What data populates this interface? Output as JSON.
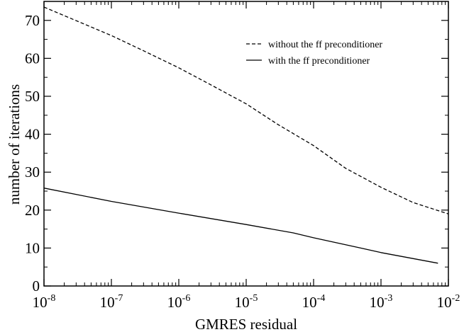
{
  "chart_data": {
    "type": "line",
    "xlabel": "GMRES residual",
    "ylabel": "number of iterations",
    "x_scale": "log",
    "xlim": [
      1e-08,
      0.01
    ],
    "ylim": [
      0,
      75
    ],
    "grid": false,
    "legend_position": "top-right",
    "x_ticks": [
      {
        "base": "10",
        "exp": "-8",
        "value": 1e-08
      },
      {
        "base": "10",
        "exp": "-7",
        "value": 1e-07
      },
      {
        "base": "10",
        "exp": "-6",
        "value": 1e-06
      },
      {
        "base": "10",
        "exp": "-5",
        "value": 1e-05
      },
      {
        "base": "10",
        "exp": "-4",
        "value": 0.0001
      },
      {
        "base": "10",
        "exp": "-3",
        "value": 0.001
      },
      {
        "base": "10",
        "exp": "-2",
        "value": 0.01
      }
    ],
    "y_ticks": [
      "0",
      "10",
      "20",
      "30",
      "40",
      "50",
      "60",
      "70"
    ],
    "series": [
      {
        "name": "without the ff preconditioner",
        "style": "dashed",
        "color": "#000000",
        "x": [
          1e-08,
          1e-07,
          3e-07,
          1e-06,
          3e-06,
          1e-05,
          3e-05,
          0.0001,
          0.0003,
          0.001,
          0.003,
          0.01
        ],
        "y": [
          73.5,
          66,
          62,
          57.5,
          53,
          48,
          42.5,
          37,
          31,
          26,
          22,
          19
        ]
      },
      {
        "name": "with the ff preconditioner",
        "style": "solid",
        "color": "#000000",
        "x": [
          1e-08,
          1e-07,
          1e-06,
          1e-05,
          5e-05,
          0.0001,
          0.0005,
          0.001,
          0.007
        ],
        "y": [
          25.8,
          22.3,
          19.2,
          16.2,
          14,
          12.7,
          10,
          8.8,
          6
        ]
      }
    ]
  }
}
